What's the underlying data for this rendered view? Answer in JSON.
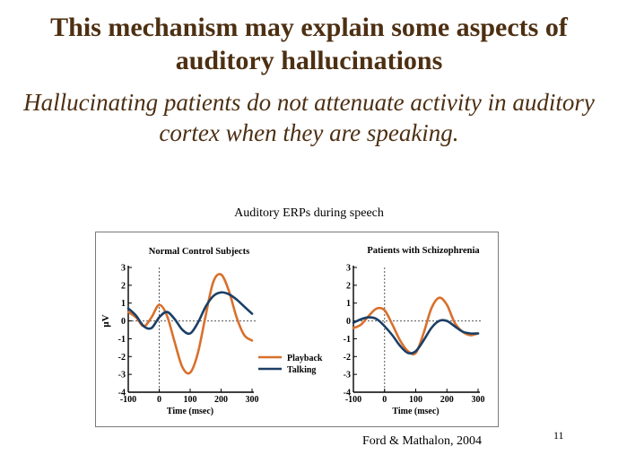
{
  "slide": {
    "title": "This mechanism may explain some aspects of auditory hallucinations",
    "subtitle": "Hallucinating patients do not attenuate activity in auditory cortex when they are speaking.",
    "figure_caption": "Auditory ERPs during speech",
    "citation": "Ford & Mathalon, 2004",
    "page_number": "11"
  },
  "colors": {
    "playback": "#d8702c",
    "talking": "#1b3f66"
  },
  "chart_data": [
    {
      "type": "line",
      "title": "Normal Control Subjects",
      "xlabel": "Time (msec)",
      "ylabel": "μV",
      "xlim": [
        -100,
        300
      ],
      "ylim": [
        -4,
        3
      ],
      "x_ticks": [
        -100,
        0,
        100,
        200,
        300
      ],
      "y_ticks": [
        3,
        2,
        1,
        0,
        -1,
        -2,
        -3,
        -4
      ],
      "legend": {
        "placement": "right",
        "entries": [
          "Playback",
          "Talking"
        ]
      },
      "series": [
        {
          "name": "Playback",
          "x": [
            -100,
            -75,
            -50,
            -25,
            0,
            25,
            50,
            75,
            100,
            125,
            150,
            175,
            200,
            225,
            250,
            275,
            300
          ],
          "values": [
            0.5,
            0.2,
            -0.3,
            0.2,
            0.9,
            0.3,
            -1.2,
            -2.6,
            -2.9,
            -1.8,
            0.3,
            2.2,
            2.6,
            1.7,
            0.2,
            -0.8,
            -1.1
          ]
        },
        {
          "name": "Talking",
          "x": [
            -100,
            -75,
            -50,
            -25,
            0,
            25,
            50,
            75,
            100,
            125,
            150,
            175,
            200,
            225,
            250,
            275,
            300
          ],
          "values": [
            0.7,
            0.3,
            -0.3,
            -0.4,
            0.2,
            0.5,
            0.1,
            -0.5,
            -0.7,
            -0.1,
            0.8,
            1.4,
            1.6,
            1.5,
            1.2,
            0.8,
            0.4
          ]
        }
      ]
    },
    {
      "type": "line",
      "title": "Patients with Schizophrenia",
      "xlabel": "Time (msec)",
      "xlim": [
        -100,
        300
      ],
      "ylim": [
        -4,
        3
      ],
      "x_ticks": [
        -100,
        0,
        100,
        200,
        300
      ],
      "y_ticks": [
        3,
        2,
        1,
        0,
        -1,
        -2,
        -3,
        -4
      ],
      "series": [
        {
          "name": "Playback",
          "x": [
            -100,
            -75,
            -50,
            -25,
            0,
            25,
            50,
            75,
            100,
            125,
            150,
            175,
            200,
            225,
            250,
            275,
            300
          ],
          "values": [
            -0.4,
            -0.2,
            0.3,
            0.7,
            0.6,
            -0.2,
            -1.1,
            -1.7,
            -1.8,
            -0.7,
            0.7,
            1.3,
            0.9,
            -0.1,
            -0.6,
            -0.8,
            -0.7
          ]
        },
        {
          "name": "Talking",
          "x": [
            -100,
            -75,
            -50,
            -25,
            0,
            25,
            50,
            75,
            100,
            125,
            150,
            175,
            200,
            225,
            250,
            275,
            300
          ],
          "values": [
            -0.1,
            0.1,
            0.2,
            0.1,
            -0.3,
            -0.8,
            -1.4,
            -1.8,
            -1.7,
            -1.1,
            -0.4,
            0.0,
            0.0,
            -0.3,
            -0.6,
            -0.7,
            -0.7
          ]
        }
      ]
    }
  ]
}
